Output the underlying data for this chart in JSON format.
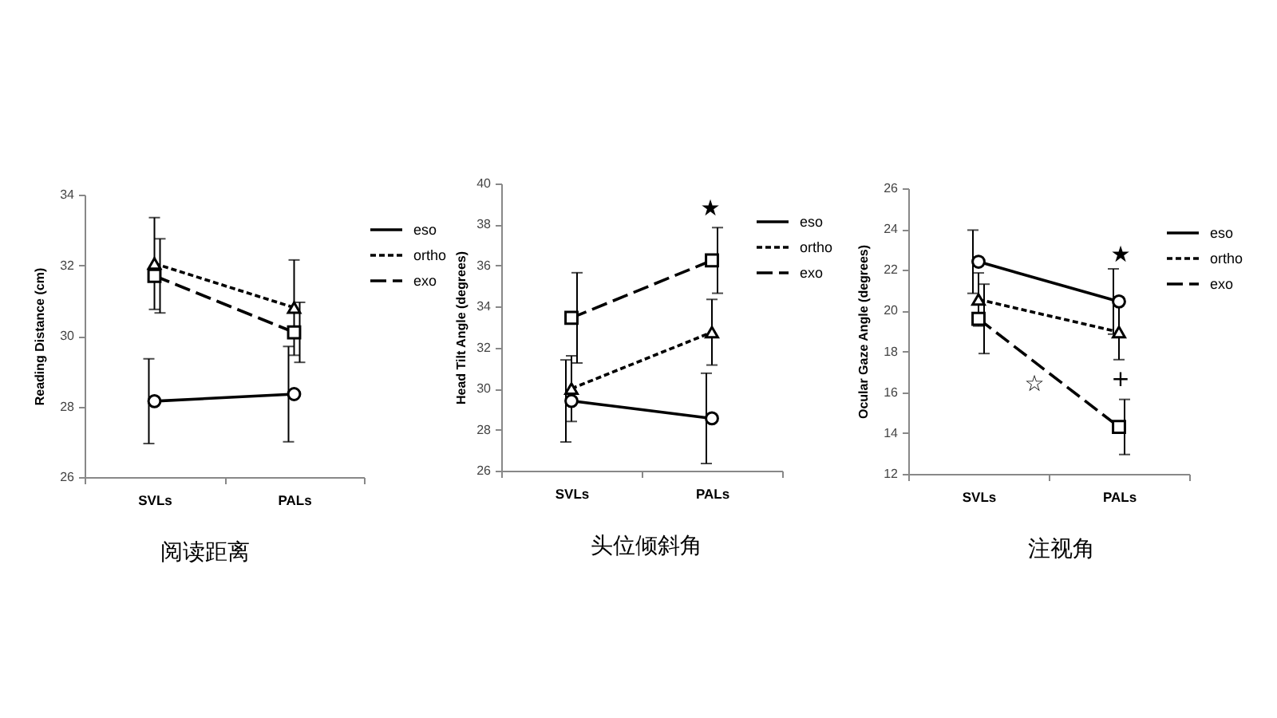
{
  "chart_data": [
    {
      "type": "line",
      "title": "阅读距离",
      "categories": [
        "SVLs",
        "PALs"
      ],
      "ylabel": "Reading Distance (cm)",
      "ylim": [
        26,
        34
      ],
      "yticks": [
        26,
        28,
        30,
        32,
        34
      ],
      "grid": false,
      "legend": "top right",
      "series": [
        {
          "name": "eso",
          "color": "#000000",
          "marker": "circle",
          "line_style": "solid",
          "values": [
            28.15,
            28.35
          ],
          "errors": [
            1.2,
            1.35
          ]
        },
        {
          "name": "ortho",
          "color": "#000000",
          "marker": "triangle",
          "line_style": "dotted",
          "values": [
            32.05,
            30.8
          ],
          "errors": [
            1.3,
            1.35
          ]
        },
        {
          "name": "exo",
          "color": "#000000",
          "marker": "square",
          "line_style": "dashed",
          "values": [
            31.7,
            30.1
          ],
          "errors": [
            1.05,
            0.85
          ]
        }
      ]
    },
    {
      "type": "line",
      "title": "头位倾斜角",
      "categories": [
        "SVLs",
        "PALs"
      ],
      "ylabel": "Head Tilt Angle (degrees)",
      "ylim": [
        26,
        40
      ],
      "yticks": [
        26,
        28,
        30,
        32,
        34,
        36,
        38,
        40
      ],
      "grid": false,
      "legend": "top right",
      "series": [
        {
          "name": "eso",
          "color": "#000000",
          "marker": "circle",
          "line_style": "solid",
          "values": [
            29.4,
            28.55
          ],
          "errors": [
            2.0,
            2.2
          ]
        },
        {
          "name": "ortho",
          "color": "#000000",
          "marker": "triangle",
          "line_style": "dotted",
          "values": [
            30.0,
            32.75
          ],
          "errors": [
            1.6,
            1.6
          ]
        },
        {
          "name": "exo",
          "color": "#000000",
          "marker": "square",
          "line_style": "dashed",
          "values": [
            33.45,
            36.25
          ],
          "errors": [
            2.2,
            1.6
          ]
        }
      ],
      "annotations": [
        "★"
      ]
    },
    {
      "type": "line",
      "title": "注视角",
      "categories": [
        "SVLs",
        "PALs"
      ],
      "ylabel": "Ocular Gaze Angle (degrees)",
      "ylim": [
        12,
        26
      ],
      "yticks": [
        12,
        14,
        16,
        18,
        20,
        22,
        24,
        26
      ],
      "grid": false,
      "legend": "top right",
      "series": [
        {
          "name": "eso",
          "color": "#000000",
          "marker": "circle",
          "line_style": "solid",
          "values": [
            22.4,
            20.45
          ],
          "errors": [
            1.55,
            1.6
          ]
        },
        {
          "name": "ortho",
          "color": "#000000",
          "marker": "triangle",
          "line_style": "dotted",
          "values": [
            20.55,
            18.95
          ],
          "errors": [
            1.3,
            1.35
          ]
        },
        {
          "name": "exo",
          "color": "#000000",
          "marker": "square",
          "line_style": "dashed",
          "values": [
            19.6,
            14.3
          ],
          "errors": [
            1.7,
            1.35
          ]
        }
      ],
      "annotations": [
        "★",
        "+",
        "☆"
      ]
    }
  ]
}
